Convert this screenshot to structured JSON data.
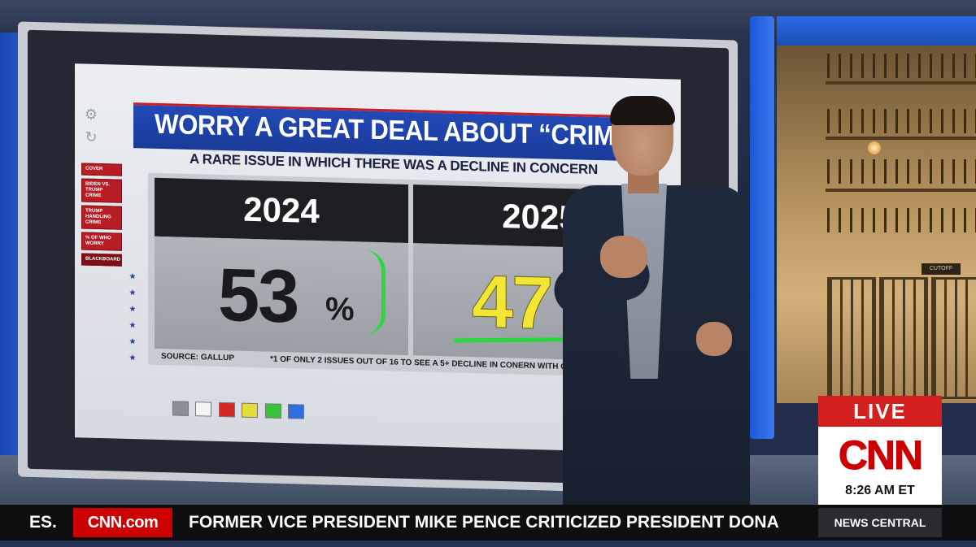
{
  "graphic": {
    "title": "WORRY A GREAT DEAL ABOUT “CRIM",
    "subtitle": "A RARE ISSUE IN WHICH THERE WAS A DECLINE IN CONCERN",
    "sidebar": [
      "COVER",
      "BIDEN VS. TRUMP CRIME",
      "TRUMP HANDLING CRIME",
      "% OF WHO WORRY",
      "BLACKBOARD"
    ],
    "panels": [
      {
        "year": "2024",
        "value": "53",
        "unit": "%",
        "value_color": "#1b1b1d"
      },
      {
        "year": "2025",
        "value": "47",
        "unit": "",
        "value_color": "#f2e534"
      }
    ],
    "source": "SOURCE: GALLUP",
    "footnote": "*1 OF ONLY 2 ISSUES OUT OF 16 TO SEE A 5+ DECLINE IN CONERN WITH GOP & DE",
    "annotation_color": "#27d93a"
  },
  "background": {
    "jail_sign": "CUTOFF"
  },
  "bug": {
    "live_label": "LIVE",
    "network": "CNN",
    "time": "8:26 AM ET",
    "live_color": "#d41f1f"
  },
  "ticker": {
    "prev_fragment": "ES.",
    "site_label": "CNN.com",
    "headline": "FORMER VICE PRESIDENT MIKE PENCE CRITICIZED PRESIDENT DONA",
    "show_name": "NEWS CENTRAL"
  }
}
